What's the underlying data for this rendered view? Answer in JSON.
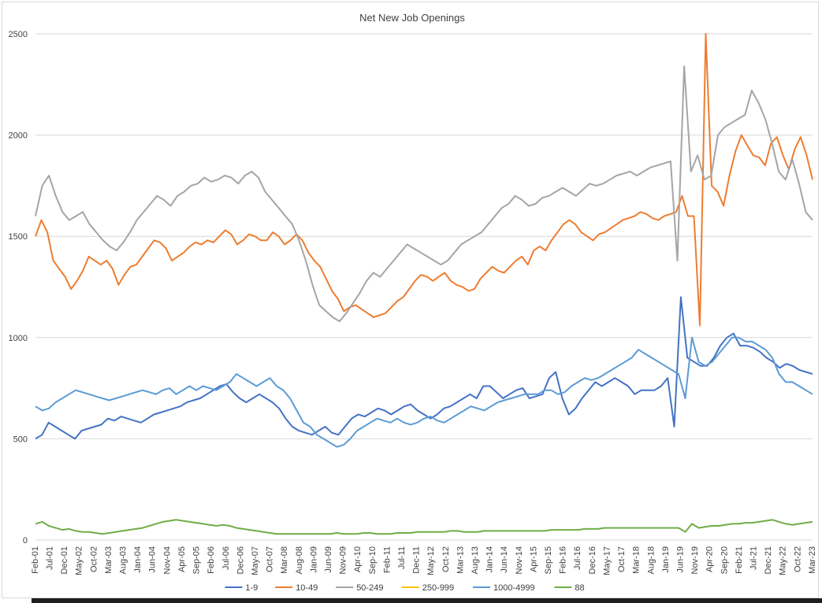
{
  "chart_data": {
    "type": "line",
    "title": "Net New Job Openings",
    "xlabel": "",
    "ylabel": "",
    "ylim": [
      0,
      2500
    ],
    "yticks": [
      0,
      500,
      1000,
      1500,
      2000,
      2500
    ],
    "grid": "horizontal",
    "legend_position": "bottom",
    "xtick_labels": [
      "Feb-01",
      "Jul-01",
      "Dec-01",
      "May-02",
      "Oct-02",
      "Mar-03",
      "Aug-03",
      "Jan-04",
      "Jun-04",
      "Nov-04",
      "Apr-05",
      "Sep-05",
      "Feb-06",
      "Jul-06",
      "Dec-06",
      "May-07",
      "Oct-07",
      "Mar-08",
      "Aug-08",
      "Jan-09",
      "Jun-09",
      "Nov-09",
      "Apr-10",
      "Sep-10",
      "Feb-11",
      "Jul-11",
      "Dec-11",
      "May-12",
      "Oct-12",
      "Mar-13",
      "Aug-13",
      "Jan-14",
      "Jun-14",
      "Nov-14",
      "Apr-15",
      "Sep-15",
      "Feb-16",
      "Jul-16",
      "Dec-16",
      "May-17",
      "Oct-17",
      "Mar-18",
      "Aug-18",
      "Jan-19",
      "Jun-19",
      "Nov-19",
      "Apr-20",
      "Sep-20",
      "Feb-21",
      "Jul-21",
      "Dec-21",
      "May-22",
      "Oct-22",
      "Mar-23"
    ],
    "series": [
      {
        "name": "1-9",
        "color": "#4472c4",
        "values": [
          500,
          520,
          580,
          560,
          540,
          520,
          500,
          540,
          550,
          560,
          570,
          600,
          590,
          610,
          600,
          590,
          580,
          600,
          620,
          630,
          640,
          650,
          660,
          680,
          690,
          700,
          720,
          740,
          760,
          770,
          730,
          700,
          680,
          700,
          720,
          700,
          680,
          650,
          600,
          560,
          540,
          530,
          520,
          540,
          560,
          530,
          520,
          560,
          600,
          620,
          610,
          630,
          650,
          640,
          620,
          640,
          660,
          670,
          640,
          620,
          600,
          620,
          650,
          660,
          680,
          700,
          720,
          700,
          760,
          760,
          730,
          700,
          720,
          740,
          750,
          700,
          710,
          720,
          800,
          830,
          700,
          620,
          650,
          700,
          740,
          780,
          760,
          780,
          800,
          780,
          760,
          720,
          740,
          740,
          740,
          760,
          800,
          560,
          1200,
          900,
          880,
          860,
          860,
          900,
          960,
          1000,
          1020,
          960,
          960,
          950,
          930,
          900,
          880,
          850,
          870,
          860,
          840,
          830,
          820
        ]
      },
      {
        "name": "10-49",
        "color": "#ed7d31",
        "values": [
          1500,
          1580,
          1520,
          1380,
          1340,
          1300,
          1240,
          1280,
          1330,
          1400,
          1380,
          1360,
          1380,
          1340,
          1260,
          1310,
          1350,
          1360,
          1400,
          1440,
          1480,
          1470,
          1440,
          1380,
          1400,
          1420,
          1450,
          1470,
          1460,
          1480,
          1470,
          1500,
          1530,
          1510,
          1460,
          1480,
          1510,
          1500,
          1480,
          1480,
          1520,
          1500,
          1460,
          1480,
          1510,
          1480,
          1420,
          1380,
          1350,
          1290,
          1230,
          1190,
          1130,
          1150,
          1160,
          1140,
          1120,
          1100,
          1110,
          1120,
          1150,
          1180,
          1200,
          1240,
          1280,
          1310,
          1300,
          1280,
          1300,
          1320,
          1280,
          1260,
          1250,
          1230,
          1240,
          1290,
          1320,
          1350,
          1330,
          1320,
          1350,
          1380,
          1400,
          1360,
          1430,
          1450,
          1430,
          1480,
          1520,
          1560,
          1580,
          1560,
          1520,
          1500,
          1480,
          1510,
          1520,
          1540,
          1560,
          1580,
          1590,
          1600,
          1620,
          1610,
          1590,
          1580,
          1600,
          1610,
          1620,
          1700,
          1600,
          1600,
          1060,
          2500,
          1750,
          1720,
          1650,
          1800,
          1920,
          2000,
          1950,
          1900,
          1890,
          1850,
          1960,
          1990,
          1900,
          1830,
          1930,
          1990,
          1900,
          1780
        ]
      },
      {
        "name": "50-249",
        "color": "#a5a5a5",
        "values": [
          1600,
          1750,
          1800,
          1700,
          1620,
          1580,
          1600,
          1620,
          1560,
          1520,
          1480,
          1450,
          1430,
          1470,
          1520,
          1580,
          1620,
          1660,
          1700,
          1680,
          1650,
          1700,
          1720,
          1750,
          1760,
          1790,
          1770,
          1780,
          1800,
          1790,
          1760,
          1800,
          1820,
          1790,
          1720,
          1680,
          1640,
          1600,
          1560,
          1480,
          1380,
          1260,
          1160,
          1130,
          1100,
          1080,
          1120,
          1170,
          1220,
          1280,
          1320,
          1300,
          1340,
          1380,
          1420,
          1460,
          1440,
          1420,
          1400,
          1380,
          1360,
          1380,
          1420,
          1460,
          1480,
          1500,
          1520,
          1560,
          1600,
          1640,
          1660,
          1700,
          1680,
          1650,
          1660,
          1690,
          1700,
          1720,
          1740,
          1720,
          1700,
          1730,
          1760,
          1750,
          1760,
          1780,
          1800,
          1810,
          1820,
          1800,
          1820,
          1840,
          1850,
          1860,
          1870,
          1380,
          2340,
          1820,
          1900,
          1780,
          1800,
          2000,
          2040,
          2060,
          2080,
          2100,
          2220,
          2160,
          2080,
          1960,
          1820,
          1780,
          1880,
          1760,
          1620,
          1580
        ]
      },
      {
        "name": "250-999",
        "color": "#ffc000",
        "values": []
      },
      {
        "name": "1000-4999",
        "color": "#5b9bd5",
        "values": [
          660,
          640,
          650,
          680,
          700,
          720,
          740,
          730,
          720,
          710,
          700,
          690,
          700,
          710,
          720,
          730,
          740,
          730,
          720,
          740,
          750,
          720,
          740,
          760,
          740,
          760,
          750,
          740,
          760,
          780,
          820,
          800,
          780,
          760,
          780,
          800,
          760,
          740,
          700,
          640,
          580,
          560,
          520,
          500,
          480,
          460,
          470,
          500,
          540,
          560,
          580,
          600,
          590,
          580,
          600,
          580,
          570,
          580,
          600,
          610,
          590,
          580,
          600,
          620,
          640,
          660,
          650,
          640,
          660,
          680,
          690,
          700,
          710,
          720,
          720,
          720,
          740,
          740,
          720,
          730,
          760,
          780,
          800,
          790,
          800,
          820,
          840,
          860,
          880,
          900,
          940,
          920,
          900,
          880,
          860,
          840,
          820,
          700,
          1000,
          880,
          860,
          880,
          920,
          960,
          1000,
          1000,
          980,
          980,
          960,
          940,
          900,
          820,
          780,
          780,
          760,
          740,
          720
        ]
      },
      {
        "name": "88",
        "color": "#70ad47",
        "values": [
          80,
          90,
          70,
          60,
          50,
          55,
          45,
          40,
          40,
          35,
          30,
          35,
          40,
          45,
          50,
          55,
          60,
          70,
          80,
          90,
          95,
          100,
          95,
          90,
          85,
          80,
          75,
          70,
          75,
          70,
          60,
          55,
          50,
          45,
          40,
          35,
          30,
          30,
          30,
          30,
          30,
          30,
          30,
          30,
          30,
          35,
          30,
          30,
          30,
          35,
          35,
          30,
          30,
          30,
          35,
          35,
          35,
          40,
          40,
          40,
          40,
          40,
          45,
          45,
          40,
          40,
          40,
          45,
          45,
          45,
          45,
          45,
          45,
          45,
          45,
          45,
          45,
          50,
          50,
          50,
          50,
          50,
          55,
          55,
          55,
          60,
          60,
          60,
          60,
          60,
          60,
          60,
          60,
          60,
          60,
          60,
          60,
          40,
          80,
          60,
          65,
          70,
          70,
          75,
          80,
          80,
          85,
          85,
          90,
          95,
          100,
          90,
          80,
          75,
          80,
          85,
          90
        ]
      }
    ]
  }
}
